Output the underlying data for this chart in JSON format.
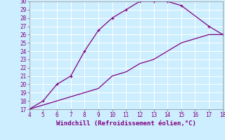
{
  "xlabel": "Windchill (Refroidissement éolien,°C)",
  "xlim": [
    4,
    18
  ],
  "ylim": [
    17,
    30
  ],
  "xticks": [
    4,
    5,
    6,
    7,
    8,
    9,
    10,
    11,
    12,
    13,
    14,
    15,
    16,
    17,
    18
  ],
  "yticks": [
    17,
    18,
    19,
    20,
    21,
    22,
    23,
    24,
    25,
    26,
    27,
    28,
    29,
    30
  ],
  "curve1_x": [
    4,
    5,
    6,
    7,
    8,
    9,
    10,
    11,
    12,
    13,
    14,
    15,
    17,
    18
  ],
  "curve1_y": [
    17,
    18,
    20,
    21,
    24,
    26.5,
    28,
    29,
    30,
    30,
    30,
    29.5,
    27,
    26
  ],
  "curve2_x": [
    4,
    5,
    6,
    7,
    8,
    9,
    10,
    11,
    12,
    13,
    14,
    15,
    16,
    17,
    18
  ],
  "curve2_y": [
    17,
    17.5,
    18,
    18.5,
    19,
    19.5,
    21,
    21.5,
    22.5,
    23,
    24,
    25,
    25.5,
    26,
    26
  ],
  "line_color": "#800080",
  "bg_color": "#cceeff",
  "grid_color": "#ffffff",
  "tick_fontsize": 5.5,
  "xlabel_fontsize": 6.5,
  "marker_x": [
    4,
    5,
    6,
    7,
    8,
    9,
    10,
    11,
    12,
    13,
    14,
    15,
    17,
    18
  ],
  "marker_y": [
    17,
    18,
    20,
    21,
    24,
    26.5,
    28,
    29,
    30,
    30,
    30,
    29.5,
    27,
    26
  ]
}
